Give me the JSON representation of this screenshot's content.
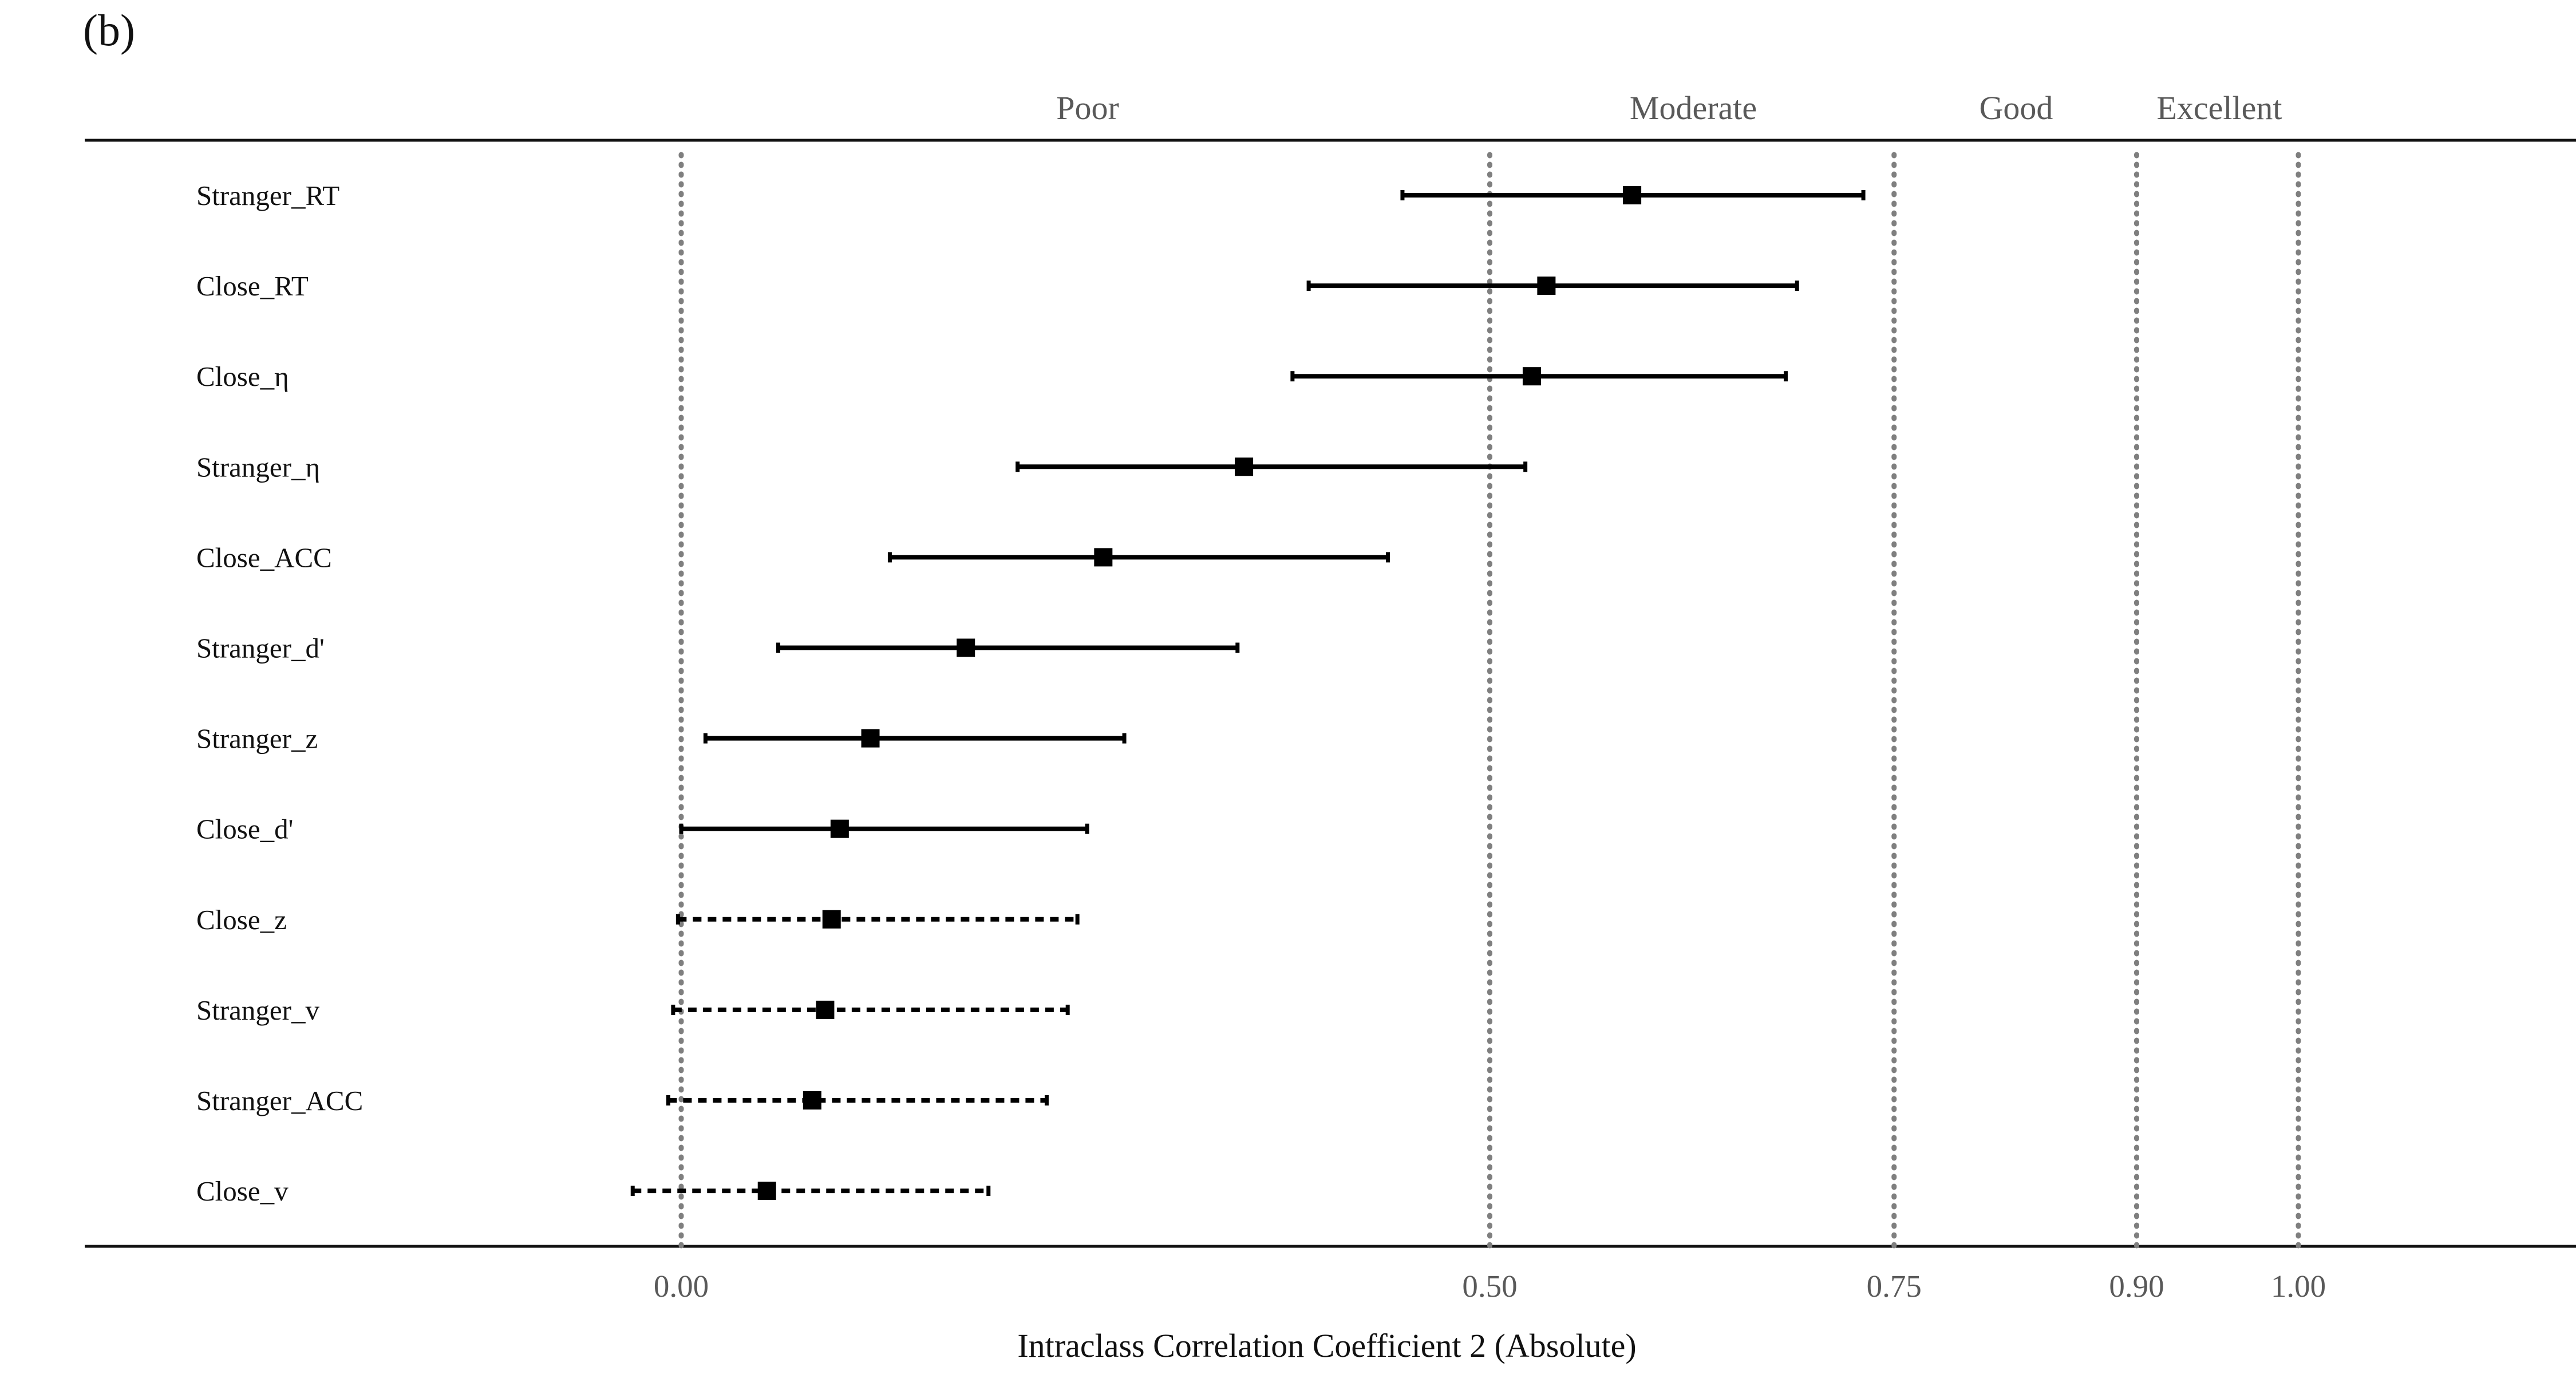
{
  "panel_label": "(b)",
  "colors": {
    "text": "#111111",
    "band_text": "#595959",
    "reference_line": "#7f7f7f",
    "marker": "#000000"
  },
  "chart_data": {
    "type": "forest",
    "xlabel": "Intraclass Correlation Coefficient 2 (Absolute)",
    "x_range": [
      -0.37,
      1.17
    ],
    "x_ticks": [
      {
        "value": 0.0,
        "label": "0.00"
      },
      {
        "value": 0.5,
        "label": "0.50"
      },
      {
        "value": 0.75,
        "label": "0.75"
      },
      {
        "value": 0.9,
        "label": "0.90"
      },
      {
        "value": 1.0,
        "label": "1.00"
      }
    ],
    "reference_lines": [
      0.0,
      0.5,
      0.75,
      0.9,
      1.0
    ],
    "bands": [
      {
        "label": "Poor",
        "from": 0.0,
        "to": 0.5
      },
      {
        "label": "Moderate",
        "from": 0.5,
        "to": 0.75
      },
      {
        "label": "Good",
        "from": 0.75,
        "to": 0.9
      },
      {
        "label": "Excellent",
        "from": 0.9,
        "to": 1.0
      }
    ],
    "line_style_note": "dashed intervals cross zero",
    "rows": [
      {
        "label": "Stranger_RT",
        "estimate": 0.588,
        "lower": 0.446,
        "upper": 0.731,
        "dashed": false
      },
      {
        "label": "Close_RT",
        "estimate": 0.535,
        "lower": 0.388,
        "upper": 0.69,
        "dashed": false
      },
      {
        "label": "Close_η",
        "estimate": 0.526,
        "lower": 0.378,
        "upper": 0.683,
        "dashed": false
      },
      {
        "label": "Stranger_η",
        "estimate": 0.348,
        "lower": 0.208,
        "upper": 0.522,
        "dashed": false
      },
      {
        "label": "Close_ACC",
        "estimate": 0.261,
        "lower": 0.129,
        "upper": 0.437,
        "dashed": false
      },
      {
        "label": "Stranger_d'",
        "estimate": 0.176,
        "lower": 0.06,
        "upper": 0.344,
        "dashed": false
      },
      {
        "label": "Stranger_z",
        "estimate": 0.117,
        "lower": 0.015,
        "upper": 0.274,
        "dashed": false
      },
      {
        "label": "Close_d'",
        "estimate": 0.098,
        "lower": 0.0,
        "upper": 0.251,
        "dashed": false
      },
      {
        "label": "Close_z",
        "estimate": 0.093,
        "lower": -0.002,
        "upper": 0.245,
        "dashed": true
      },
      {
        "label": "Stranger_v",
        "estimate": 0.089,
        "lower": -0.005,
        "upper": 0.239,
        "dashed": true
      },
      {
        "label": "Stranger_ACC",
        "estimate": 0.081,
        "lower": -0.008,
        "upper": 0.226,
        "dashed": true
      },
      {
        "label": "Close_v",
        "estimate": 0.053,
        "lower": -0.03,
        "upper": 0.19,
        "dashed": true
      }
    ]
  }
}
